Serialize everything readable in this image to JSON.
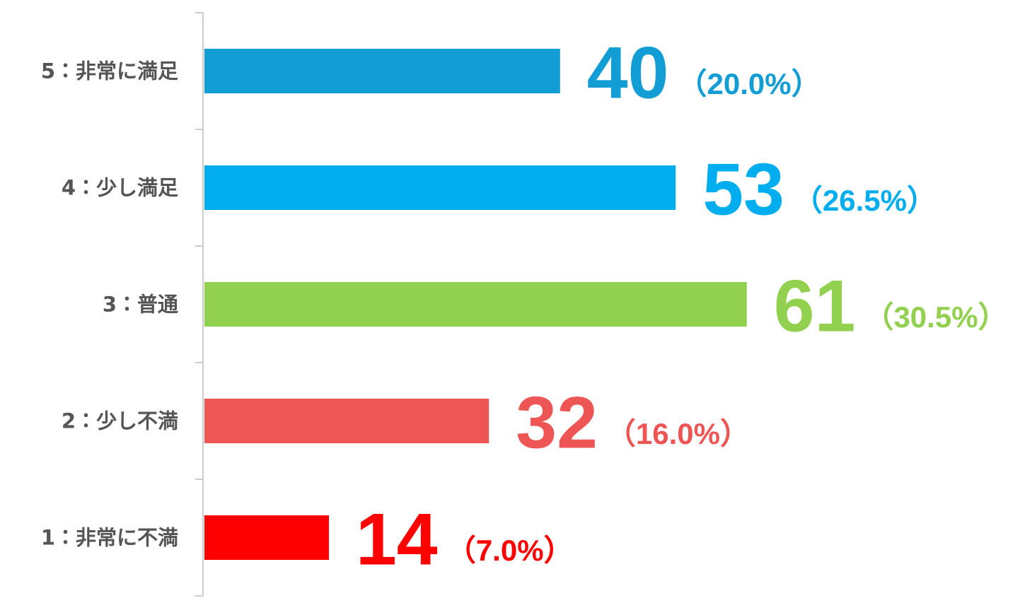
{
  "chart_data": {
    "type": "bar",
    "orientation": "horizontal",
    "categories": [
      "5：非常に満足",
      "4：少し満足",
      "3：普通",
      "2：少し不満",
      "1：非常に不満"
    ],
    "values": [
      40,
      53,
      61,
      32,
      14
    ],
    "percent_labels": [
      "（20.0%）",
      "（26.5%）",
      "（30.5%）",
      "（16.0%）",
      "（7.0%）"
    ],
    "colors": [
      "#129dd5",
      "#00aeef",
      "#92d050",
      "#ee5656",
      "#ff0000"
    ]
  }
}
